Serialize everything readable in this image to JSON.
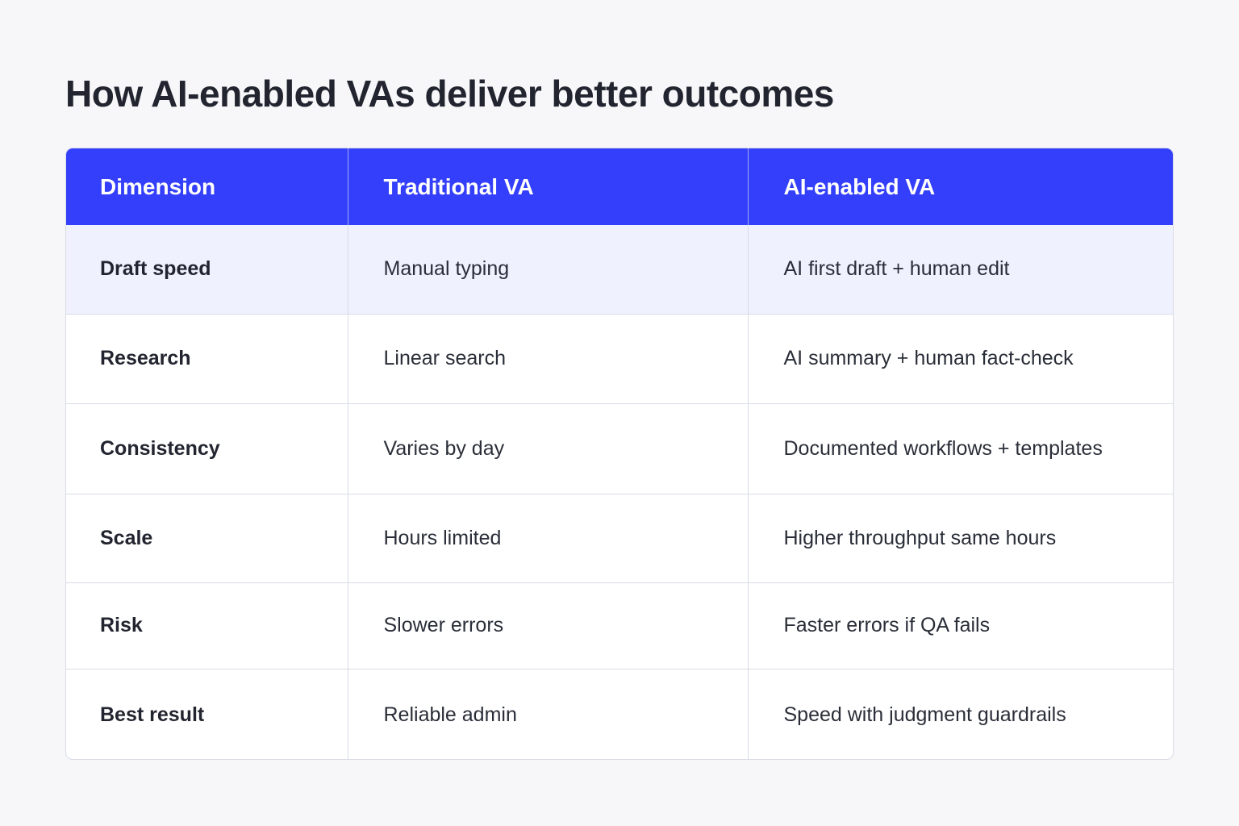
{
  "title": "How AI-enabled VAs deliver better outcomes",
  "table": {
    "headers": [
      "Dimension",
      "Traditional VA",
      "AI-enabled VA"
    ],
    "rows": [
      {
        "dimension": "Draft speed",
        "traditional": "Manual typing",
        "ai": "AI first draft + human edit"
      },
      {
        "dimension": "Research",
        "traditional": "Linear search",
        "ai": "AI summary + human fact-check"
      },
      {
        "dimension": "Consistency",
        "traditional": "Varies by day",
        "ai": "Documented workflows + templates"
      },
      {
        "dimension": "Scale",
        "traditional": "Hours limited",
        "ai": "Higher throughput same hours"
      },
      {
        "dimension": "Risk",
        "traditional": "Slower errors",
        "ai": "Faster errors if QA fails"
      },
      {
        "dimension": "Best result",
        "traditional": "Reliable admin",
        "ai": "Speed with judgment guardrails"
      }
    ]
  },
  "colors": {
    "header_background": "#333ffa",
    "header_text": "#ffffff",
    "highlight_row": "#eff1fe",
    "page_background": "#f7f7f9"
  }
}
